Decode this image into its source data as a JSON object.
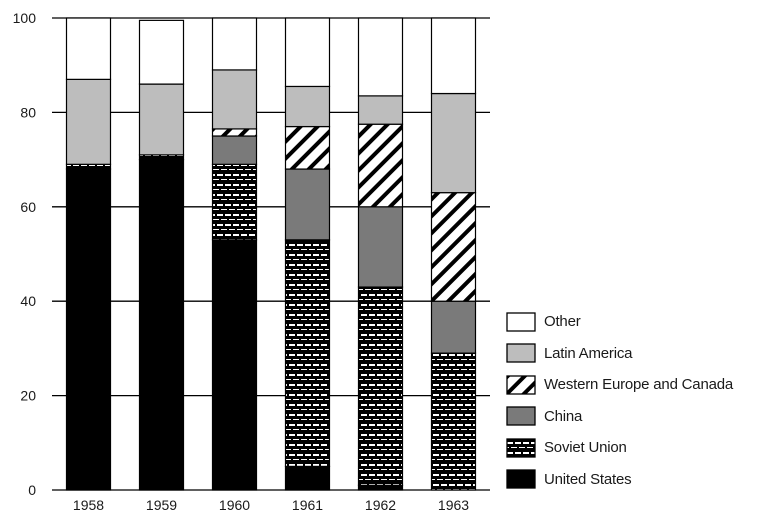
{
  "chart_data": {
    "type": "bar",
    "stacked": true,
    "title": "",
    "xlabel": "",
    "ylabel": "",
    "ylim": [
      0,
      100
    ],
    "yticks": [
      "0",
      "20",
      "40",
      "60",
      "80",
      "100"
    ],
    "grid": "horizontal gridlines at y ticks",
    "legend_position": "right",
    "categories": [
      "1958",
      "1959",
      "1960",
      "1961",
      "1962",
      "1963"
    ],
    "series": [
      {
        "name": "United States",
        "values": [
          68,
          70,
          53,
          5,
          1,
          0
        ],
        "pattern": "solid-black",
        "color": "#000000"
      },
      {
        "name": "Soviet Union",
        "values": [
          1,
          1,
          16,
          48,
          42,
          29
        ],
        "pattern": "brick",
        "color": "#000000"
      },
      {
        "name": "China",
        "values": [
          0,
          0,
          6,
          15,
          17,
          11
        ],
        "pattern": "solid-gray",
        "color": "#7a7a7a"
      },
      {
        "name": "Western Europe and Canada",
        "values": [
          0,
          0,
          1.5,
          9,
          17.5,
          23
        ],
        "pattern": "diagonal-hatch",
        "color": "#000000"
      },
      {
        "name": "Latin America",
        "values": [
          18,
          15,
          12.5,
          8.5,
          6,
          21
        ],
        "pattern": "solid-light-gray",
        "color": "#bdbdbd"
      },
      {
        "name": "Other",
        "values": [
          13,
          13.5,
          11,
          14.5,
          16.5,
          16
        ],
        "pattern": "white",
        "color": "#ffffff"
      }
    ]
  }
}
